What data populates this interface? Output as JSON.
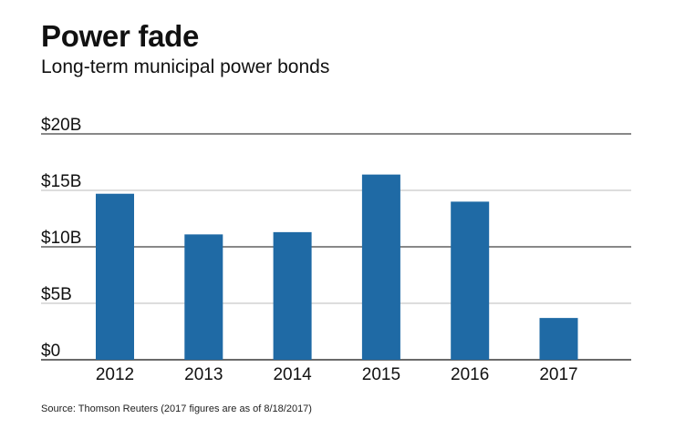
{
  "title": "Power fade",
  "subtitle": "Long-term municipal power bonds",
  "source": "Source: Thomson Reuters (2017 figures are as of 8/18/2017)",
  "colors": {
    "bar": "#1f6aa5",
    "gridline": "#bbbbbb",
    "axis": "#111111"
  },
  "chart_data": {
    "type": "bar",
    "categories": [
      "2012",
      "2013",
      "2014",
      "2015",
      "2016",
      "2017"
    ],
    "values": [
      14.7,
      11.1,
      11.3,
      16.4,
      14.0,
      3.7
    ],
    "ylim": [
      0,
      20
    ],
    "yticks": [
      0,
      5,
      10,
      15,
      20
    ],
    "ytick_labels": [
      "$0",
      "$5B",
      "$10B",
      "$15B",
      "$20B"
    ],
    "unit": "$ billions",
    "grid": true
  }
}
